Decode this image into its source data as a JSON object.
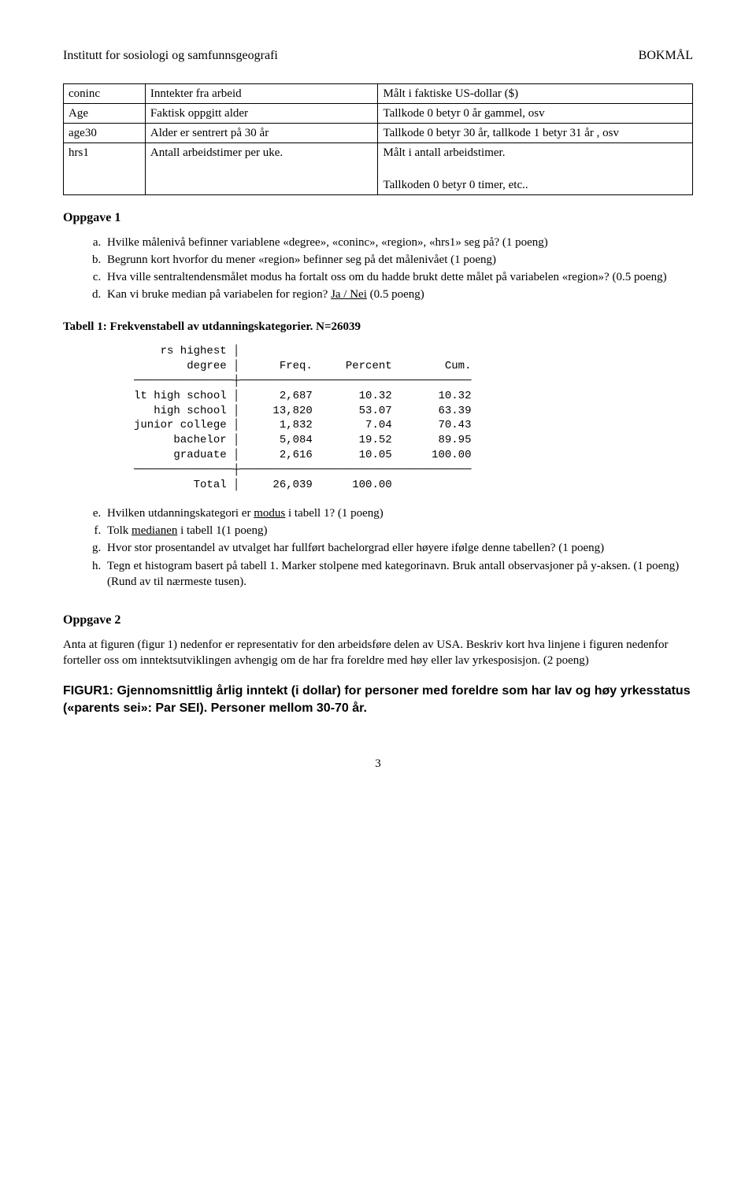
{
  "header": {
    "left": "Institutt for sosiologi og samfunnsgeografi",
    "right": "BOKMÅL"
  },
  "var_table": {
    "rows": [
      [
        "coninc",
        "Inntekter fra arbeid",
        "Målt i faktiske US-dollar ($)"
      ],
      [
        "Age",
        "Faktisk oppgitt alder",
        "Tallkode 0 betyr 0 år gammel, osv"
      ],
      [
        "age30",
        "Alder er sentrert på 30 år",
        "Tallkode 0 betyr 30 år, tallkode 1 betyr  31 år , osv"
      ],
      [
        "hrs1",
        "Antall arbeidstimer per uke.",
        "Målt i antall arbeidstimer.\n\nTallkoden 0 betyr 0 timer, etc.."
      ]
    ]
  },
  "oppgave1": {
    "title": "Oppgave 1",
    "items": {
      "a": "Hvilke målenivå befinner variablene «degree», «coninc», «region», «hrs1» seg på? (1 poeng)",
      "b": "Begrunn kort hvorfor du mener «region» befinner seg på det målenivået (1 poeng)",
      "c": "Hva ville sentraltendensmålet modus ha fortalt oss om du hadde brukt dette målet på variabelen «region»? (0.5 poeng)",
      "d_pre": "Kan vi bruke median på variabelen for region? ",
      "d_underline": "Ja / Nei",
      "d_post": " (0.5 poeng)"
    }
  },
  "tabell1": {
    "title": "Tabell 1: Frekvenstabell av utdanningskategorier. N=26039",
    "stata": "    rs highest │\n        degree │      Freq.     Percent        Cum.\n───────────────┼───────────────────────────────────\nlt high school │      2,687       10.32       10.32\n   high school │     13,820       53.07       63.39\njunior college │      1,832        7.04       70.43\n      bachelor │      5,084       19.52       89.95\n      graduate │      2,616       10.05      100.00\n───────────────┼───────────────────────────────────\n         Total │     26,039      100.00"
  },
  "oppgave1b": {
    "e_pre": "Hvilken utdanningskategori er ",
    "e_u": "modus",
    "e_post": " i tabell 1? (1 poeng)",
    "f_pre": "Tolk ",
    "f_u": "medianen",
    "f_post": " i tabell 1(1 poeng)",
    "g": "Hvor stor prosentandel av utvalget har fullført bachelorgrad eller høyere ifølge denne tabellen? (1 poeng)",
    "h": "Tegn et histogram basert på tabell 1. Marker stolpene med kategorinavn. Bruk antall observasjoner på y-aksen. (1 poeng) (Rund av til nærmeste tusen)."
  },
  "oppgave2": {
    "title": "Oppgave 2",
    "para": "Anta at figuren (figur 1) nedenfor er representativ for den arbeidsføre delen av USA. Beskriv kort hva linjene i figuren nedenfor forteller oss om inntektsutviklingen avhengig om de har fra foreldre med høy eller lav yrkesposisjon. (2 poeng)"
  },
  "figur1": {
    "title": "FIGUR1: Gjennomsnittlig årlig inntekt (i dollar) for personer med foreldre som har lav og høy yrkesstatus («parents sei»: Par SEI). Personer mellom 30-70 år."
  },
  "page_number": "3"
}
